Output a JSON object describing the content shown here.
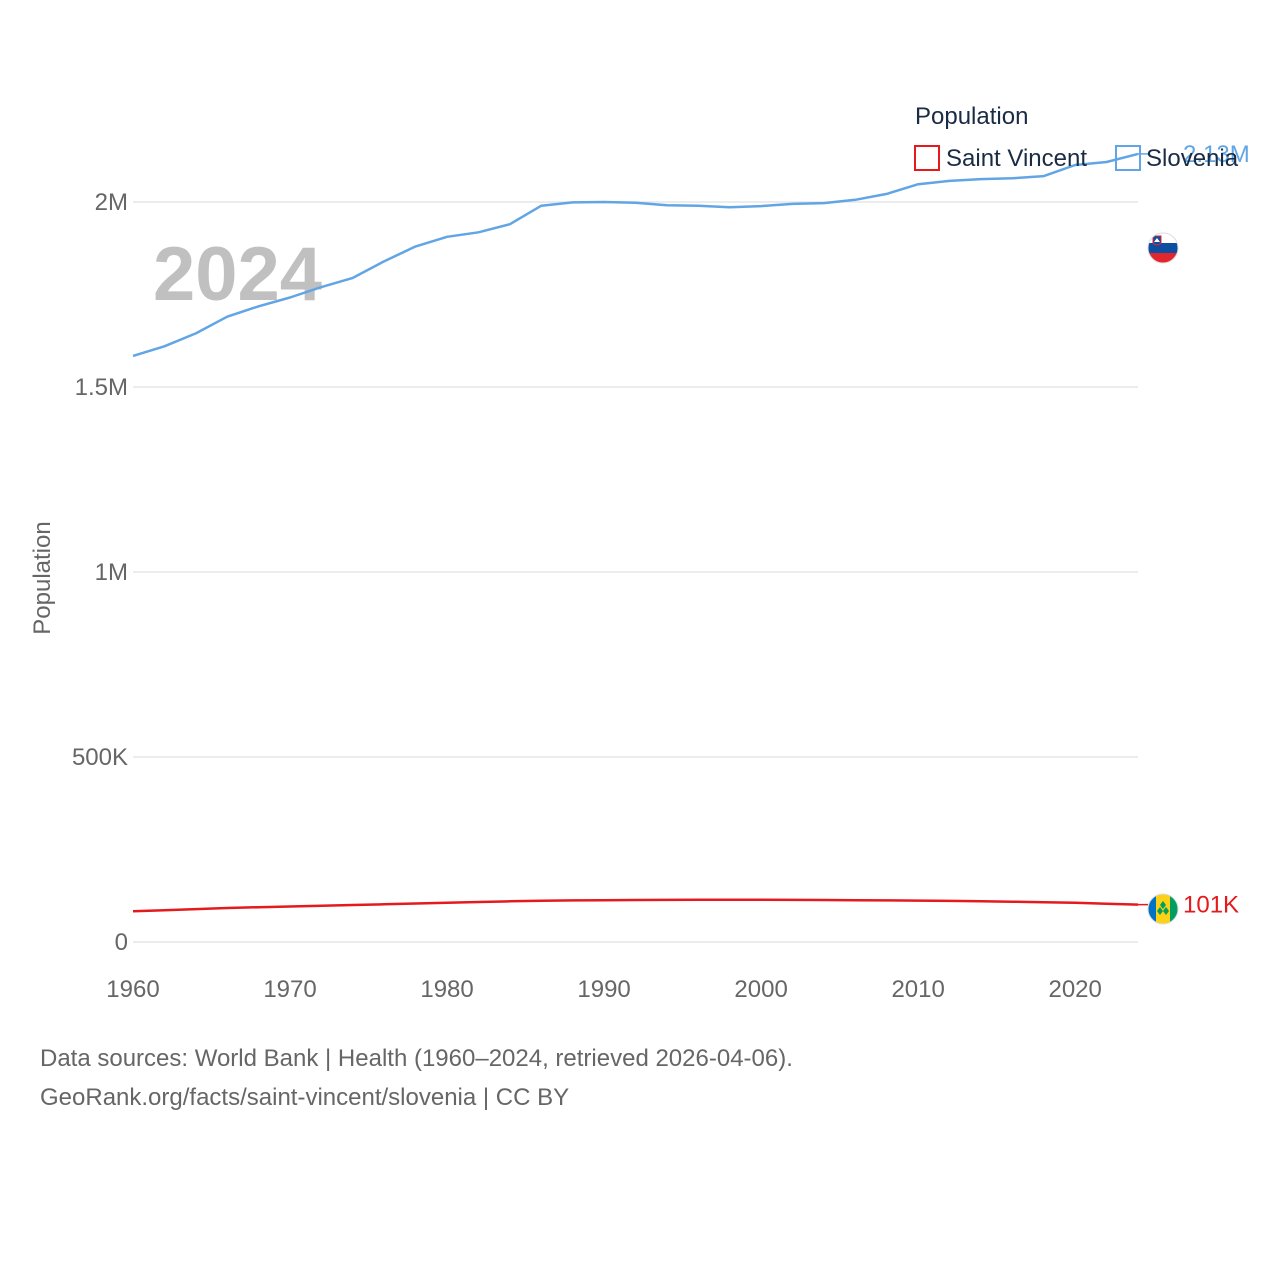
{
  "chart_data": {
    "type": "line",
    "title": "",
    "year_label": "2024",
    "xlabel": "",
    "ylabel": "Population",
    "xlim": [
      1960,
      2024
    ],
    "ylim": [
      0,
      2200000
    ],
    "x_ticks": [
      1960,
      1970,
      1980,
      1990,
      2000,
      2010,
      2020
    ],
    "x_tick_labels": [
      "1960",
      "1970",
      "1980",
      "1990",
      "2000",
      "2010",
      "2020"
    ],
    "y_ticks": [
      0,
      500000,
      1000000,
      1500000,
      2000000
    ],
    "y_tick_labels": [
      "0",
      "500K",
      "1M",
      "1.5M",
      "2M"
    ],
    "legend": {
      "title": "Population",
      "position": "top-right"
    },
    "x": [
      1960,
      1962,
      1964,
      1966,
      1968,
      1970,
      1972,
      1974,
      1976,
      1978,
      1980,
      1982,
      1984,
      1986,
      1988,
      1990,
      1992,
      1994,
      1996,
      1998,
      2000,
      2002,
      2004,
      2006,
      2008,
      2010,
      2012,
      2014,
      2016,
      2018,
      2020,
      2022,
      2024
    ],
    "series": [
      {
        "name": "Saint Vincent",
        "color": "#e41a1c",
        "end_label": "101K",
        "flag": "saint-vincent-flag-icon",
        "values": [
          83000,
          86000,
          89000,
          92000,
          94000,
          96000,
          98000,
          100000,
          102000,
          104000,
          106000,
          108000,
          110000,
          111500,
          112500,
          113000,
          113500,
          113800,
          114000,
          114200,
          114000,
          113800,
          113500,
          113000,
          112500,
          112000,
          111000,
          110000,
          109000,
          107500,
          106000,
          103500,
          101000
        ]
      },
      {
        "name": "Slovenia",
        "color": "#62a5e5",
        "end_label": "2.13M",
        "flag": "slovenia-flag-icon",
        "values": [
          1584000,
          1610000,
          1645000,
          1690000,
          1718000,
          1742000,
          1770000,
          1795000,
          1840000,
          1880000,
          1906000,
          1918000,
          1940000,
          1990000,
          1999000,
          2000000,
          1998000,
          1991000,
          1990000,
          1986000,
          1989000,
          1995000,
          1997000,
          2006000,
          2022000,
          2048000,
          2057000,
          2062000,
          2064000,
          2070000,
          2100000,
          2108000,
          2130000
        ]
      }
    ]
  },
  "footer": {
    "sources": "Data sources: World Bank | Health (1960–2024, retrieved 2026-04-06).",
    "credit": "GeoRank.org/facts/saint-vincent/slovenia | CC BY"
  }
}
